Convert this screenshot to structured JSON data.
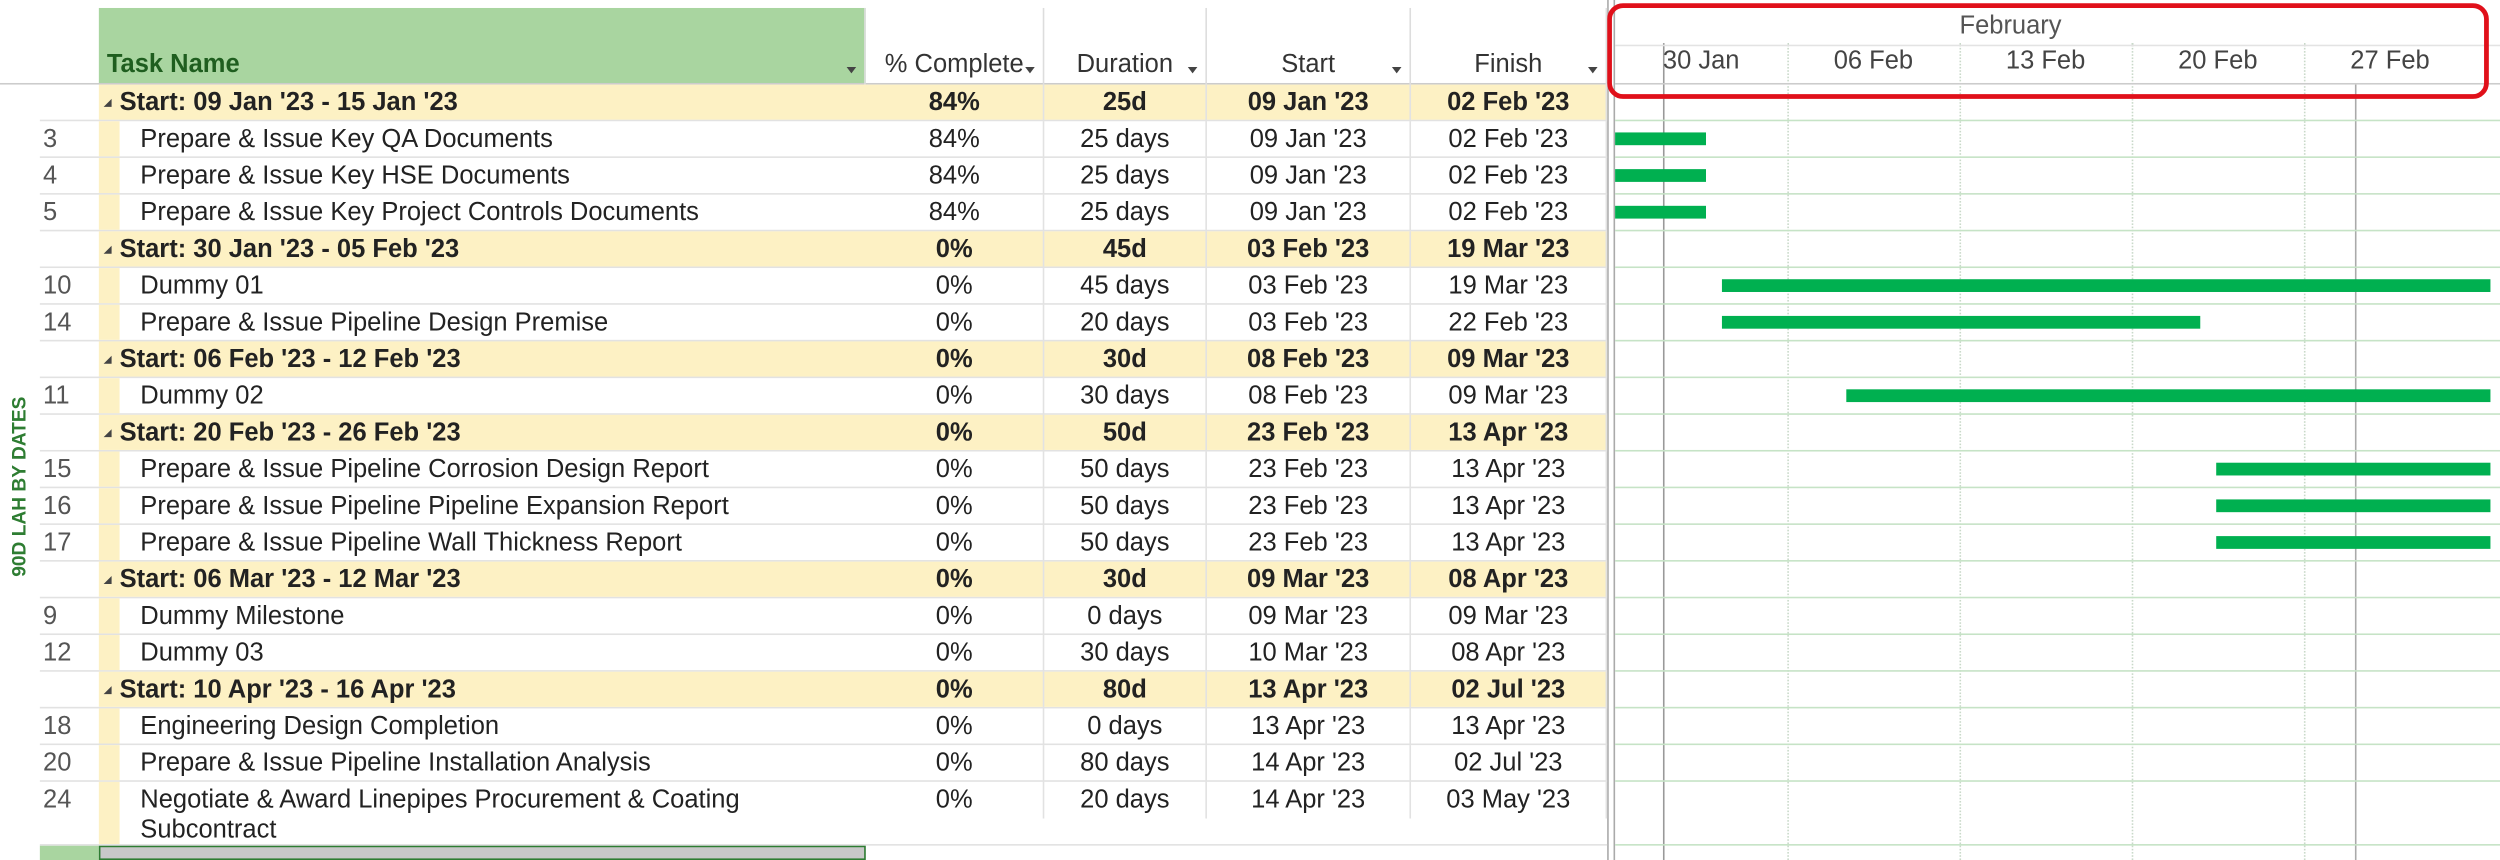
{
  "side_label": "90D LAH BY DATES",
  "columns": [
    "Task Name",
    "% Complete",
    "Duration",
    "Start",
    "Finish"
  ],
  "timescale": {
    "month": "February",
    "weeks": [
      "30 Jan",
      "06 Feb",
      "13 Feb",
      "20 Feb",
      "27 Feb"
    ]
  },
  "groups": [
    {
      "name": "Start: 09 Jan '23 - 15 Jan '23",
      "complete": "84%",
      "duration": "25d",
      "start": "09 Jan '23",
      "finish": "02 Feb '23",
      "tasks": [
        {
          "id": "3",
          "name": "Prepare & Issue Key QA Documents",
          "complete": "84%",
          "duration": "25 days",
          "start": "09 Jan '23",
          "finish": "02 Feb '23"
        },
        {
          "id": "4",
          "name": "Prepare & Issue Key HSE Documents",
          "complete": "84%",
          "duration": "25 days",
          "start": "09 Jan '23",
          "finish": "02 Feb '23"
        },
        {
          "id": "5",
          "name": "Prepare & Issue Key Project Controls Documents",
          "complete": "84%",
          "duration": "25 days",
          "start": "09 Jan '23",
          "finish": "02 Feb '23"
        }
      ]
    },
    {
      "name": "Start: 30 Jan '23 - 05 Feb '23",
      "complete": "0%",
      "duration": "45d",
      "start": "03 Feb '23",
      "finish": "19 Mar '23",
      "tasks": [
        {
          "id": "10",
          "name": "Dummy 01",
          "complete": "0%",
          "duration": "45 days",
          "start": "03 Feb '23",
          "finish": "19 Mar '23"
        },
        {
          "id": "14",
          "name": "Prepare & Issue Pipeline Design Premise",
          "complete": "0%",
          "duration": "20 days",
          "start": "03 Feb '23",
          "finish": "22 Feb '23"
        }
      ]
    },
    {
      "name": "Start: 06 Feb '23 - 12 Feb '23",
      "complete": "0%",
      "duration": "30d",
      "start": "08 Feb '23",
      "finish": "09 Mar '23",
      "tasks": [
        {
          "id": "11",
          "name": "Dummy 02",
          "complete": "0%",
          "duration": "30 days",
          "start": "08 Feb '23",
          "finish": "09 Mar '23"
        }
      ]
    },
    {
      "name": "Start: 20 Feb '23 - 26 Feb '23",
      "complete": "0%",
      "duration": "50d",
      "start": "23 Feb '23",
      "finish": "13 Apr '23",
      "tasks": [
        {
          "id": "15",
          "name": "Prepare & Issue Pipeline Corrosion Design Report",
          "complete": "0%",
          "duration": "50 days",
          "start": "23 Feb '23",
          "finish": "13 Apr '23"
        },
        {
          "id": "16",
          "name": "Prepare & Issue Pipeline Pipeline Expansion Report",
          "complete": "0%",
          "duration": "50 days",
          "start": "23 Feb '23",
          "finish": "13 Apr '23"
        },
        {
          "id": "17",
          "name": "Prepare & Issue Pipeline Wall Thickness Report",
          "complete": "0%",
          "duration": "50 days",
          "start": "23 Feb '23",
          "finish": "13 Apr '23"
        }
      ]
    },
    {
      "name": "Start: 06 Mar '23 - 12 Mar '23",
      "complete": "0%",
      "duration": "30d",
      "start": "09 Mar '23",
      "finish": "08 Apr '23",
      "tasks": [
        {
          "id": "9",
          "name": "Dummy Milestone",
          "complete": "0%",
          "duration": "0 days",
          "start": "09 Mar '23",
          "finish": "09 Mar '23"
        },
        {
          "id": "12",
          "name": "Dummy 03",
          "complete": "0%",
          "duration": "30 days",
          "start": "10 Mar '23",
          "finish": "08 Apr '23"
        }
      ]
    },
    {
      "name": "Start: 10 Apr '23 - 16 Apr '23",
      "complete": "0%",
      "duration": "80d",
      "start": "13 Apr '23",
      "finish": "02 Jul '23",
      "tasks": [
        {
          "id": "18",
          "name": "Engineering Design Completion",
          "complete": "0%",
          "duration": "0 days",
          "start": "13 Apr '23",
          "finish": "13 Apr '23"
        },
        {
          "id": "20",
          "name": "Prepare & Issue Pipeline Installation Analysis",
          "complete": "0%",
          "duration": "80 days",
          "start": "14 Apr '23",
          "finish": "02 Jul '23"
        },
        {
          "id": "24",
          "name": "Negotiate & Award Linepipes Procurement & Coating Subcontract",
          "complete": "0%",
          "duration": "20 days",
          "start": "14 Apr '23",
          "finish": "03 May '23"
        }
      ]
    }
  ]
}
